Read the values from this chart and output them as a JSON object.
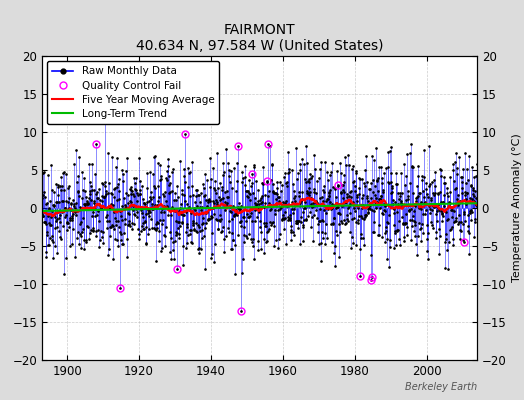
{
  "title": "FAIRMONT",
  "subtitle": "40.634 N, 97.584 W (United States)",
  "ylabel": "Temperature Anomaly (°C)",
  "watermark": "Berkeley Earth",
  "ylim": [
    -20,
    20
  ],
  "xlim": [
    1893,
    2014
  ],
  "xticks": [
    1900,
    1920,
    1940,
    1960,
    1980,
    2000
  ],
  "yticks": [
    -20,
    -15,
    -10,
    -5,
    0,
    5,
    10,
    15,
    20
  ],
  "start_year": 1893,
  "end_year": 2013,
  "bg_color": "#dcdcdc",
  "plot_bg_color": "#ffffff",
  "raw_color": "#0000ff",
  "moving_avg_color": "#ff0000",
  "trend_color": "#00bb00",
  "qc_fail_color": "#ff00ff",
  "seed": 42,
  "noise_std": 3.2,
  "qc_fail_times": [
    1930.5,
    1948.5,
    1951.5,
    1955.5,
    1975.5,
    1984.5,
    2010.5
  ],
  "qc_fail_vals": [
    -8.0,
    -13.5,
    4.5,
    3.5,
    3.0,
    -9.5,
    -4.5
  ]
}
